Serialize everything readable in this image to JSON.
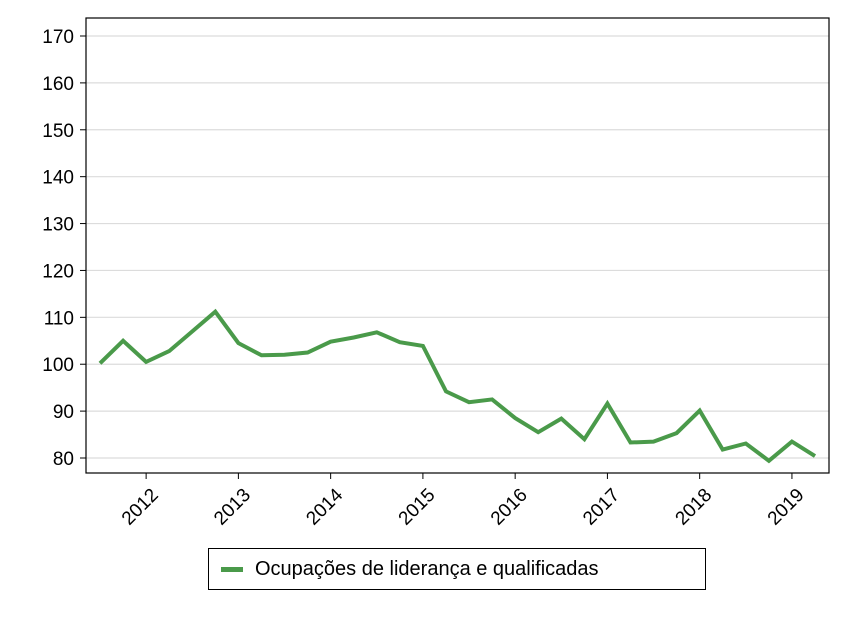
{
  "chart_data": {
    "type": "line",
    "title": "",
    "xlabel": "",
    "ylabel": "",
    "ylim": [
      80,
      170
    ],
    "yticks": [
      80,
      90,
      100,
      110,
      120,
      130,
      140,
      150,
      160,
      170
    ],
    "xticks": [
      "2012",
      "2013",
      "2014",
      "2015",
      "2016",
      "2017",
      "2018",
      "2019"
    ],
    "grid": true,
    "legend_position": "bottom",
    "series": [
      {
        "name": "Ocupações de liderança e qualificadas",
        "color": "#4a9a4a",
        "x": [
          "2011-Q3",
          "2011-Q4",
          "2012-Q1",
          "2012-Q2",
          "2012-Q3",
          "2012-Q4",
          "2013-Q1",
          "2013-Q2",
          "2013-Q3",
          "2013-Q4",
          "2014-Q1",
          "2014-Q2",
          "2014-Q3",
          "2014-Q4",
          "2015-Q1",
          "2015-Q2",
          "2015-Q3",
          "2015-Q4",
          "2016-Q1",
          "2016-Q2",
          "2016-Q3",
          "2016-Q4",
          "2017-Q1",
          "2017-Q2",
          "2017-Q3",
          "2017-Q4",
          "2018-Q1",
          "2018-Q2",
          "2018-Q3",
          "2018-Q4",
          "2019-Q1",
          "2019-Q2"
        ],
        "values": [
          100.2,
          105.0,
          100.5,
          102.8,
          107.0,
          111.2,
          104.5,
          101.9,
          102.0,
          102.5,
          104.8,
          105.7,
          106.8,
          104.7,
          103.9,
          94.2,
          91.9,
          92.5,
          88.5,
          85.5,
          88.4,
          84.0,
          91.6,
          83.3,
          83.5,
          85.3,
          90.1,
          81.8,
          83.1,
          79.4,
          83.5,
          80.4
        ]
      }
    ]
  }
}
